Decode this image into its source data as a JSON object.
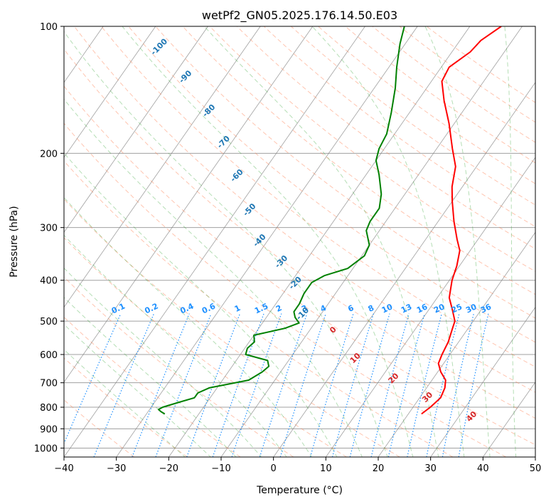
{
  "chart_data": {
    "type": "line",
    "subtype": "skew-T log-P diagram",
    "title": "wetPf2_GN05.2025.176.14.50.E03",
    "xlabel": "Temperature (°C)",
    "ylabel": "Pressure (hPa)",
    "xlim": [
      -40,
      50
    ],
    "ylim": [
      1050,
      100
    ],
    "y_scale": "log",
    "x_ticks": [
      -40,
      -30,
      -20,
      -10,
      0,
      10,
      20,
      30,
      40,
      50
    ],
    "y_ticks": [
      100,
      200,
      300,
      400,
      500,
      600,
      700,
      800,
      900,
      1000
    ],
    "grid": true,
    "series": [
      {
        "role": "temperature",
        "color": "#ff0000",
        "points": [
          {
            "p": 830,
            "t": 22.5
          },
          {
            "p": 800,
            "t": 23.3
          },
          {
            "p": 760,
            "t": 24.0
          },
          {
            "p": 720,
            "t": 23.5
          },
          {
            "p": 690,
            "t": 22.6
          },
          {
            "p": 660,
            "t": 20.6
          },
          {
            "p": 630,
            "t": 19.0
          },
          {
            "p": 600,
            "t": 18.5
          },
          {
            "p": 560,
            "t": 18.0
          },
          {
            "p": 520,
            "t": 17.0
          },
          {
            "p": 500,
            "t": 16.5
          },
          {
            "p": 470,
            "t": 14.5
          },
          {
            "p": 440,
            "t": 12.3
          },
          {
            "p": 400,
            "t": 10.5
          },
          {
            "p": 370,
            "t": 9.5
          },
          {
            "p": 340,
            "t": 8.0
          },
          {
            "p": 320,
            "t": 6.0
          },
          {
            "p": 290,
            "t": 3.0
          },
          {
            "p": 260,
            "t": 0.0
          },
          {
            "p": 240,
            "t": -2.0
          },
          {
            "p": 215,
            "t": -4.0
          },
          {
            "p": 195,
            "t": -7.0
          },
          {
            "p": 170,
            "t": -11.0
          },
          {
            "p": 150,
            "t": -15.0
          },
          {
            "p": 135,
            "t": -18.0
          },
          {
            "p": 125,
            "t": -18.5
          },
          {
            "p": 115,
            "t": -16.5
          },
          {
            "p": 108,
            "t": -16.0
          },
          {
            "p": 100,
            "t": -14.0
          }
        ]
      },
      {
        "role": "dewpoint",
        "color": "#008000",
        "points": [
          {
            "p": 830,
            "t": -26.5
          },
          {
            "p": 820,
            "t": -27.5
          },
          {
            "p": 810,
            "t": -28.3
          },
          {
            "p": 800,
            "t": -27.8
          },
          {
            "p": 780,
            "t": -25.5
          },
          {
            "p": 760,
            "t": -23.0
          },
          {
            "p": 740,
            "t": -23.0
          },
          {
            "p": 720,
            "t": -21.5
          },
          {
            "p": 690,
            "t": -15.0
          },
          {
            "p": 660,
            "t": -13.5
          },
          {
            "p": 640,
            "t": -13.0
          },
          {
            "p": 620,
            "t": -14.0
          },
          {
            "p": 600,
            "t": -19.0
          },
          {
            "p": 580,
            "t": -19.5
          },
          {
            "p": 560,
            "t": -19.0
          },
          {
            "p": 540,
            "t": -20.0
          },
          {
            "p": 520,
            "t": -15.0
          },
          {
            "p": 505,
            "t": -13.0
          },
          {
            "p": 490,
            "t": -14.5
          },
          {
            "p": 475,
            "t": -15.5
          },
          {
            "p": 455,
            "t": -15.5
          },
          {
            "p": 430,
            "t": -16.0
          },
          {
            "p": 405,
            "t": -16.0
          },
          {
            "p": 390,
            "t": -14.5
          },
          {
            "p": 375,
            "t": -11.0
          },
          {
            "p": 350,
            "t": -9.5
          },
          {
            "p": 330,
            "t": -10.0
          },
          {
            "p": 305,
            "t": -12.5
          },
          {
            "p": 290,
            "t": -13.0
          },
          {
            "p": 270,
            "t": -13.0
          },
          {
            "p": 250,
            "t": -14.5
          },
          {
            "p": 225,
            "t": -17.5
          },
          {
            "p": 208,
            "t": -20.0
          },
          {
            "p": 195,
            "t": -21.0
          },
          {
            "p": 180,
            "t": -21.5
          },
          {
            "p": 160,
            "t": -23.5
          },
          {
            "p": 140,
            "t": -26.0
          },
          {
            "p": 125,
            "t": -28.5
          },
          {
            "p": 110,
            "t": -31.0
          },
          {
            "p": 100,
            "t": -32.5
          }
        ]
      }
    ],
    "dry_adiabat_labels": [
      {
        "text": "-100",
        "p": 113,
        "t": -76
      },
      {
        "text": "-90",
        "p": 133,
        "t": -67
      },
      {
        "text": "-80",
        "p": 160,
        "t": -58
      },
      {
        "text": "-70",
        "p": 190,
        "t": -51
      },
      {
        "text": "-60",
        "p": 228,
        "t": -44
      },
      {
        "text": "-50",
        "p": 275,
        "t": -37
      },
      {
        "text": "-40",
        "p": 325,
        "t": -31
      },
      {
        "text": "-30",
        "p": 365,
        "t": -24
      },
      {
        "text": "-20",
        "p": 410,
        "t": -18.5
      },
      {
        "text": "-10",
        "p": 485,
        "t": -13
      }
    ],
    "moist_adiabat_labels": [
      {
        "text": "0",
        "p": 530,
        "t": -5
      },
      {
        "text": "10",
        "p": 618,
        "t": 3
      },
      {
        "text": "20",
        "p": 690,
        "t": 13
      },
      {
        "text": "30",
        "p": 765,
        "t": 22
      },
      {
        "text": "40",
        "p": 850,
        "t": 33
      }
    ],
    "mixing_ratio_labels": [
      "0.1",
      "0.2",
      "0.4",
      "0.6",
      "1",
      "1.5",
      "2",
      "3",
      "4",
      "6",
      "8",
      "10",
      "13",
      "16",
      "20",
      "25",
      "30",
      "36"
    ],
    "mixing_ratio_label_pressure": 480,
    "colors": {
      "temperature": "#ff0000",
      "dewpoint": "#008000",
      "dry_adiabat": "#ff7f50",
      "moist_adiabat": "#2ca02c",
      "mixing_ratio": "#1e90ff",
      "dry_adiabat_label": "#1f77b4",
      "moist_adiabat_label": "#d62728",
      "isotherm": "#808080",
      "isobar": "#a0a0a0"
    }
  }
}
